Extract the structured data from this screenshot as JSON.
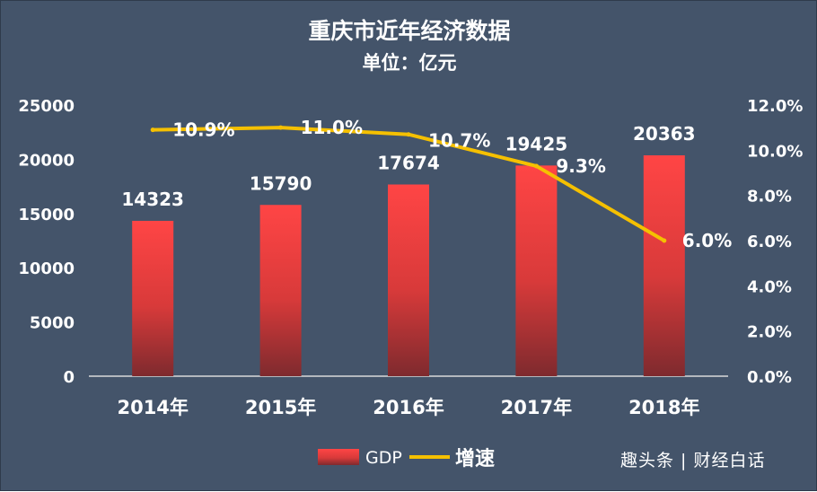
{
  "chart_data": {
    "type": "bar",
    "title": "重庆市近年经济数据",
    "subtitle": "单位：亿元",
    "categories": [
      "2014年",
      "2015年",
      "2016年",
      "2017年",
      "2018年"
    ],
    "series": [
      {
        "name": "GDP",
        "type": "bar",
        "axis": "left",
        "values": [
          14323,
          15790,
          17674,
          19425,
          20363
        ],
        "labels": [
          "14323",
          "15790",
          "17674",
          "19425",
          "20363"
        ]
      },
      {
        "name": "增速",
        "type": "line",
        "axis": "right",
        "values": [
          10.9,
          11.0,
          10.7,
          9.3,
          6.0
        ],
        "labels": [
          "10.9%",
          "11.0%",
          "10.7%",
          "9.3%",
          "6.0%"
        ]
      }
    ],
    "y_left": {
      "ylim": [
        0,
        25000
      ],
      "ticks": [
        "0",
        "5000",
        "10000",
        "15000",
        "20000",
        "25000"
      ]
    },
    "y_right": {
      "ylim": [
        0,
        12
      ],
      "ticks": [
        "0.0%",
        "2.0%",
        "4.0%",
        "6.0%",
        "8.0%",
        "10.0%",
        "12.0%"
      ]
    },
    "grid": false,
    "legend": "bottom",
    "colors": {
      "background": "#44546a",
      "bar_top": "#ff4444",
      "bar_bottom": "#8b2a2a",
      "line": "#f5c000",
      "axis": "#d9d9d9"
    }
  },
  "watermark": "趣头条 | 财经白话"
}
